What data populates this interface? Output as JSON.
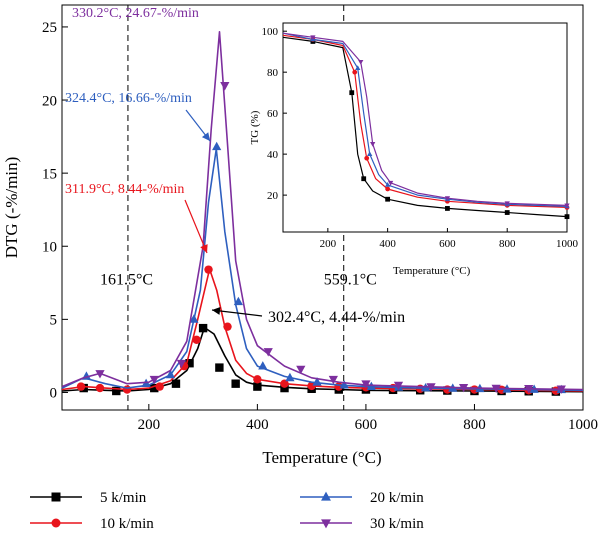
{
  "chart_data": [
    {
      "type": "line",
      "xlabel": "Temperature (°C)",
      "ylabel": "DTG (-%/min)",
      "xlim": [
        40,
        1000
      ],
      "ylim": [
        -1.2,
        26.5
      ],
      "xticks": [
        200,
        400,
        600,
        800,
        1000
      ],
      "yticks": [
        0,
        5,
        10,
        15,
        20,
        25
      ],
      "grid": false,
      "legend": "bottom",
      "vlines": [
        {
          "x": 161.5,
          "label": "161.5°C"
        },
        {
          "x": 559.1,
          "label": "559.1°C"
        }
      ],
      "series": [
        {
          "name": "5 k/min",
          "color": "#000000",
          "marker": "square",
          "x": [
            40,
            80,
            120,
            160,
            200,
            240,
            270,
            290,
            302.4,
            320,
            340,
            360,
            380,
            400,
            450,
            500,
            550,
            600,
            700,
            800,
            900,
            1000
          ],
          "y": [
            0.1,
            0.2,
            0.15,
            0.1,
            0.2,
            0.6,
            1.5,
            3.0,
            4.44,
            4.0,
            2.5,
            1.2,
            0.7,
            0.5,
            0.35,
            0.25,
            0.2,
            0.15,
            0.12,
            0.1,
            0.08,
            0.05
          ],
          "markers_x": [
            80,
            140,
            210,
            250,
            275,
            300,
            330,
            360,
            400,
            450,
            500,
            550,
            600,
            650,
            700,
            750,
            800,
            850,
            900,
            950
          ],
          "markers_y": [
            0.3,
            0.1,
            0.3,
            0.6,
            2.0,
            4.4,
            1.7,
            0.6,
            0.4,
            0.3,
            0.25,
            0.2,
            0.2,
            0.18,
            0.15,
            0.13,
            0.1,
            0.1,
            0.08,
            0.06
          ]
        },
        {
          "name": "10 k/min",
          "color": "#e8141c",
          "marker": "circle",
          "x": [
            40,
            80,
            120,
            160,
            200,
            240,
            270,
            290,
            311.9,
            325,
            340,
            360,
            380,
            400,
            450,
            500,
            550,
            600,
            700,
            800,
            900,
            1000
          ],
          "y": [
            0.2,
            0.4,
            0.3,
            0.2,
            0.3,
            0.8,
            2.0,
            5.0,
            8.44,
            7.0,
            4.5,
            2.2,
            1.3,
            0.9,
            0.6,
            0.45,
            0.35,
            0.3,
            0.25,
            0.2,
            0.15,
            0.1
          ],
          "markers_x": [
            75,
            110,
            160,
            220,
            265,
            288,
            310,
            345,
            400,
            450,
            500,
            550,
            600,
            650,
            700,
            750,
            800,
            850,
            900,
            950
          ],
          "markers_y": [
            0.4,
            0.3,
            0.2,
            0.4,
            1.8,
            3.6,
            8.4,
            4.5,
            0.9,
            0.6,
            0.45,
            0.4,
            0.35,
            0.3,
            0.25,
            0.2,
            0.2,
            0.18,
            0.15,
            0.12
          ]
        },
        {
          "name": "20 k/min",
          "color": "#2e5fbf",
          "marker": "triangle-up",
          "x": [
            40,
            80,
            120,
            160,
            200,
            240,
            270,
            295,
            310,
            324.4,
            340,
            360,
            380,
            400,
            450,
            500,
            550,
            600,
            700,
            800,
            900,
            1000
          ],
          "y": [
            0.3,
            1.0,
            0.6,
            0.3,
            0.5,
            1.2,
            2.8,
            7.0,
            13.0,
            16.66,
            11.0,
            6.0,
            3.0,
            1.8,
            1.1,
            0.7,
            0.5,
            0.4,
            0.3,
            0.25,
            0.2,
            0.15
          ],
          "markers_x": [
            85,
            195,
            240,
            283,
            325,
            365,
            410,
            460,
            510,
            560,
            610,
            660,
            710,
            760,
            810,
            860,
            910,
            960
          ],
          "markers_y": [
            1.1,
            0.6,
            1.2,
            5.0,
            16.8,
            6.2,
            1.8,
            1.0,
            0.7,
            0.5,
            0.4,
            0.35,
            0.3,
            0.28,
            0.25,
            0.22,
            0.2,
            0.18
          ]
        },
        {
          "name": "30 k/min",
          "color": "#7d2f9e",
          "marker": "triangle-down",
          "x": [
            40,
            80,
            110,
            160,
            200,
            240,
            270,
            300,
            315,
            330.2,
            345,
            360,
            380,
            400,
            450,
            500,
            550,
            600,
            700,
            800,
            900,
            1000
          ],
          "y": [
            0.4,
            1.0,
            1.3,
            0.6,
            0.7,
            1.5,
            3.5,
            10.0,
            18.0,
            24.67,
            17.0,
            9.0,
            5.0,
            3.2,
            1.8,
            1.0,
            0.7,
            0.5,
            0.4,
            0.3,
            0.25,
            0.2
          ],
          "markers_x": [
            110,
            210,
            260,
            340,
            420,
            480,
            540,
            600,
            660,
            720,
            780,
            840,
            900,
            960
          ],
          "markers_y": [
            1.3,
            0.9,
            2.0,
            21.0,
            2.8,
            1.6,
            0.9,
            0.6,
            0.5,
            0.4,
            0.35,
            0.3,
            0.28,
            0.25
          ]
        }
      ],
      "annotations": [
        {
          "text": "330.2°C, 24.67-%/min",
          "color": "#7d2f9e",
          "x": 330.2,
          "y": 24.67
        },
        {
          "text": "324.4°C, 16.66-%/min",
          "color": "#2e5fbf",
          "x": 324.4,
          "y": 16.66
        },
        {
          "text": "311.9°C, 8.44-%/min",
          "color": "#e8141c",
          "x": 311.9,
          "y": 8.44
        },
        {
          "text": "302.4°C, 4.44-%/min",
          "color": "#000000",
          "x": 302.4,
          "y": 4.44
        }
      ]
    },
    {
      "type": "line",
      "xlabel": "Temperature (°C)",
      "ylabel": "TG (%)",
      "xlim": [
        50,
        1000
      ],
      "ylim": [
        2,
        104
      ],
      "xticks": [
        200,
        400,
        600,
        800,
        1000
      ],
      "yticks": [
        20,
        40,
        60,
        80,
        100
      ],
      "grid": false,
      "legend": "none",
      "series": [
        {
          "name": "5 k/min",
          "color": "#000000",
          "marker": "square",
          "x": [
            50,
            150,
            250,
            280,
            300,
            320,
            350,
            400,
            500,
            600,
            700,
            800,
            900,
            1000
          ],
          "y": [
            97,
            95,
            92,
            70,
            40,
            28,
            22,
            18,
            15,
            13.5,
            12.5,
            11.5,
            10.5,
            9.5
          ]
        },
        {
          "name": "10 k/min",
          "color": "#e8141c",
          "marker": "circle",
          "x": [
            50,
            150,
            250,
            290,
            310,
            330,
            360,
            400,
            500,
            600,
            700,
            800,
            900,
            1000
          ],
          "y": [
            98,
            96,
            93,
            80,
            55,
            38,
            28,
            23,
            19,
            17,
            16,
            15,
            14.5,
            14
          ]
        },
        {
          "name": "20 k/min",
          "color": "#2e5fbf",
          "marker": "triangle-up",
          "x": [
            50,
            150,
            250,
            300,
            320,
            340,
            370,
            400,
            500,
            600,
            700,
            800,
            900,
            1000
          ],
          "y": [
            99,
            96,
            94,
            82,
            60,
            40,
            30,
            25,
            20,
            18,
            16.5,
            15.5,
            15,
            14.5
          ]
        },
        {
          "name": "30 k/min",
          "color": "#7d2f9e",
          "marker": "triangle-down",
          "x": [
            50,
            150,
            250,
            310,
            330,
            350,
            380,
            410,
            500,
            600,
            700,
            800,
            900,
            1000
          ],
          "y": [
            99,
            97,
            95,
            85,
            68,
            45,
            32,
            26,
            21,
            18.5,
            17,
            16,
            15.5,
            15
          ]
        }
      ]
    }
  ]
}
